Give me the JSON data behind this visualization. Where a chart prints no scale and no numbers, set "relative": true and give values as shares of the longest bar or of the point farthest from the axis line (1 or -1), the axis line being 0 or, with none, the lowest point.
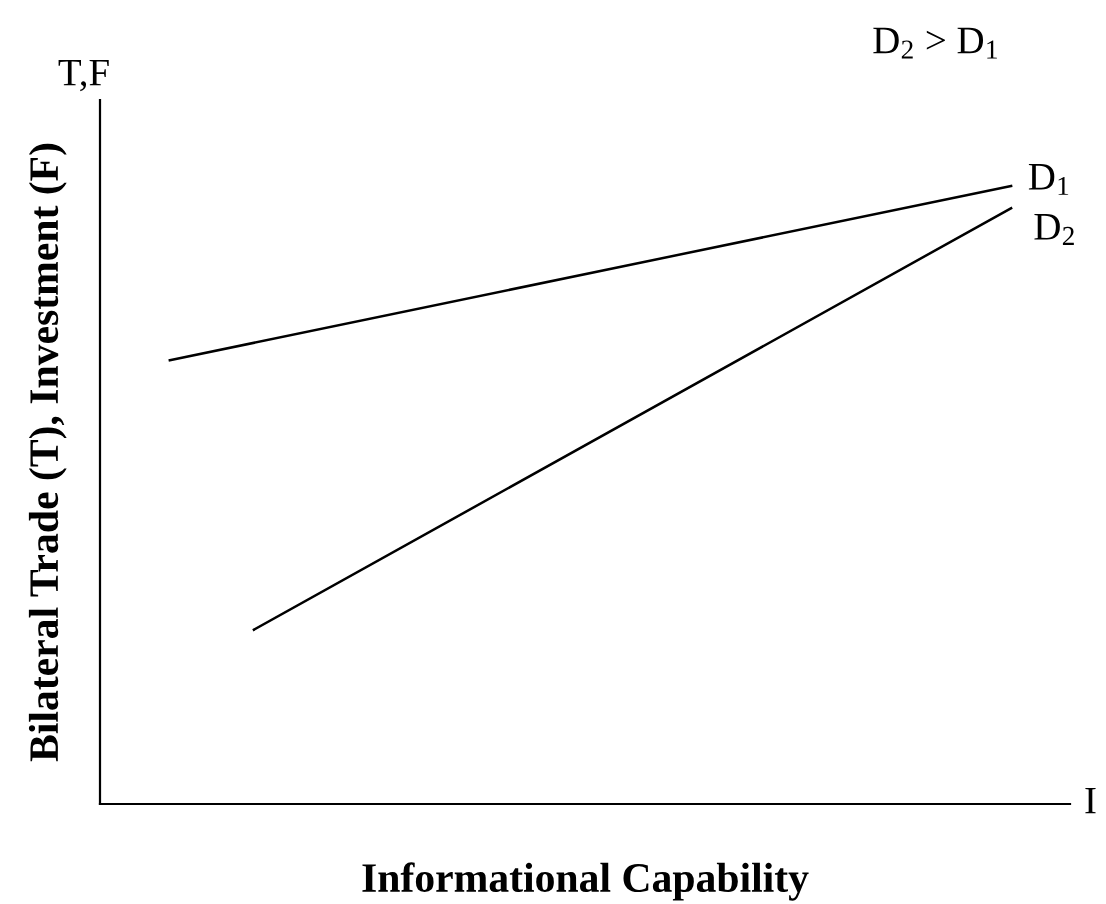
{
  "chart_data": {
    "type": "line",
    "relative": true,
    "xlabel": "Informational Capability",
    "ylabel": "Bilateral Trade (T), Investment (F)",
    "categories": [
      null,
      null,
      null,
      null,
      null,
      null,
      null,
      null,
      null,
      null,
      null
    ],
    "marker": "none",
    "line_style": "solid",
    "series": [
      {
        "name": "D$_{1}$",
        "color": "#000000",
        "values": [
          0.718,
          null,
          null,
          null,
          null,
          null,
          null,
          null,
          null,
          null,
          1.0
        ]
      },
      {
        "name": "D$_{2}$",
        "color": "#000000",
        "values": [
          null,
          0.282,
          null,
          null,
          null,
          null,
          null,
          null,
          null,
          null,
          0.964
        ]
      }
    ],
    "annotations": [
      "T,F",
      "I",
      "D$_{2}$ > D$_{1}$"
    ]
  }
}
